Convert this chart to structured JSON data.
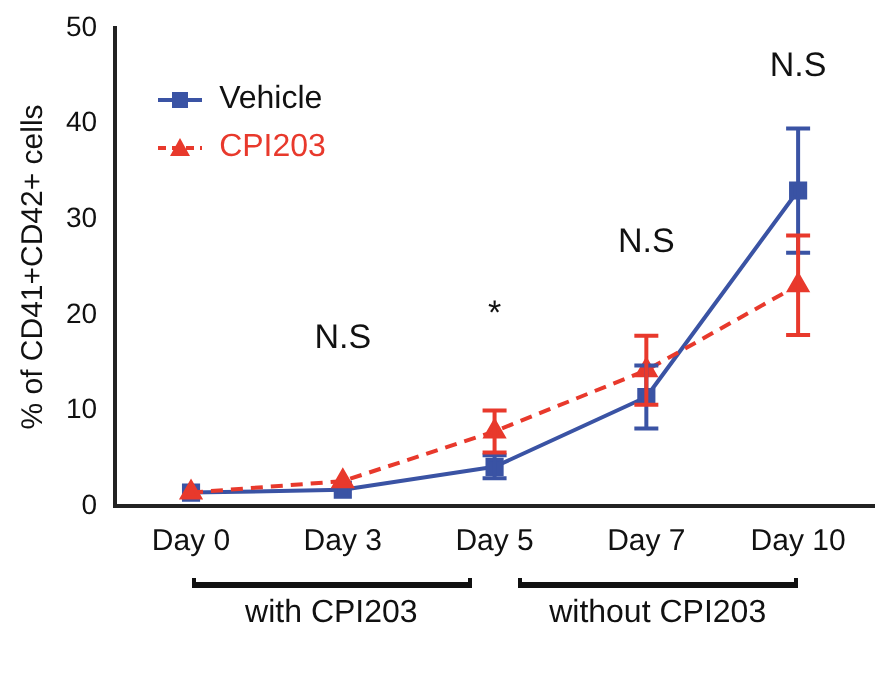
{
  "chart_data": {
    "type": "line",
    "ylabel": "% of CD41+CD42+ cells",
    "categories": [
      "Day 0",
      "Day 3",
      "Day 5",
      "Day 7",
      "Day 10"
    ],
    "ylim": [
      0,
      50
    ],
    "yticks": [
      0,
      10,
      20,
      30,
      40,
      50
    ],
    "grid": false,
    "legend": "top left",
    "series": [
      {
        "name": "Vehicle",
        "color": "#3a53a4",
        "marker": "square",
        "line_style": "solid",
        "values": [
          1.4,
          1.7,
          4.1,
          11.4,
          33.0
        ],
        "errors": [
          null,
          null,
          1.2,
          3.3,
          6.5
        ]
      },
      {
        "name": "CPI203",
        "color": "#e8392c",
        "marker": "triangle",
        "line_style": "dashed",
        "values": [
          1.4,
          2.6,
          7.8,
          14.2,
          23.1
        ],
        "errors": [
          null,
          null,
          2.2,
          3.6,
          5.2
        ]
      }
    ],
    "annotations": [
      "N.S",
      "*",
      "N.S",
      "N.S",
      "with CPI203",
      "without CPI203"
    ]
  }
}
